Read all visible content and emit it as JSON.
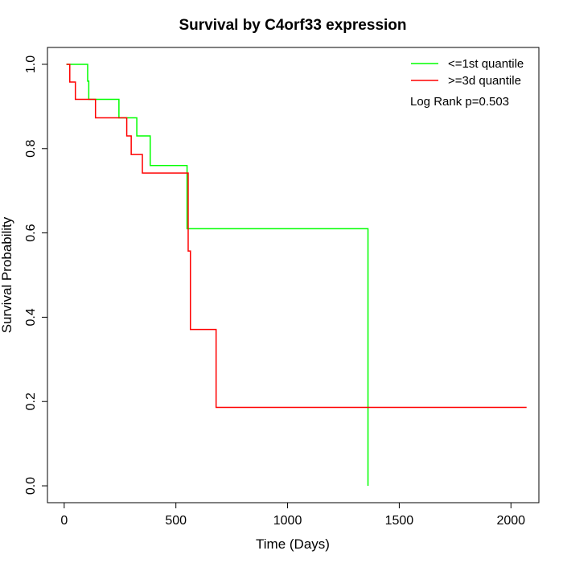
{
  "chart_data": {
    "type": "line",
    "title": "Survival by C4orf33 expression",
    "xlabel": "Time (Days)",
    "ylabel": "Survival Probability",
    "xlim": [
      -75,
      2125
    ],
    "ylim": [
      -0.04,
      1.04
    ],
    "xticks": [
      0,
      500,
      1000,
      1500,
      2000
    ],
    "yticks": [
      0.0,
      0.2,
      0.4,
      0.6,
      0.8,
      1.0
    ],
    "xtick_labels": [
      "0",
      "500",
      "1000",
      "1500",
      "2000"
    ],
    "ytick_labels": [
      "0.0",
      "0.2",
      "0.4",
      "0.6",
      "0.8",
      "1.0"
    ],
    "annotation": "Log Rank p=0.503",
    "legend_position": "top-right",
    "series": [
      {
        "name": "<=1st quantile",
        "color": "#00ff00",
        "step_points": [
          [
            10,
            1.0
          ],
          [
            105,
            0.96
          ],
          [
            110,
            0.917
          ],
          [
            245,
            0.873
          ],
          [
            325,
            0.83
          ],
          [
            385,
            0.76
          ],
          [
            550,
            0.61
          ],
          [
            1360,
            0.0
          ]
        ]
      },
      {
        "name": ">=3d quantile",
        "color": "#ff0000",
        "step_points": [
          [
            10,
            1.0
          ],
          [
            25,
            0.958
          ],
          [
            50,
            0.917
          ],
          [
            140,
            0.873
          ],
          [
            280,
            0.83
          ],
          [
            300,
            0.786
          ],
          [
            350,
            0.742
          ],
          [
            555,
            0.557
          ],
          [
            565,
            0.371
          ],
          [
            680,
            0.186
          ],
          [
            2070,
            0.186
          ]
        ]
      }
    ]
  }
}
